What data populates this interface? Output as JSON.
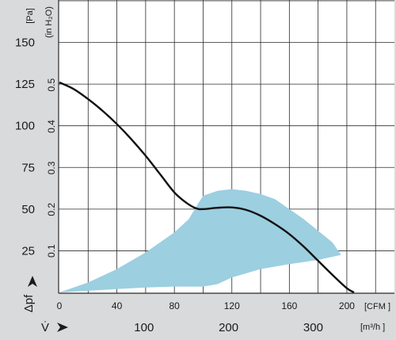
{
  "chart_data": {
    "type": "line",
    "title": "",
    "grid": true,
    "legend": "none",
    "colors": {
      "page": "#d9dadb",
      "plot": "#ffffff",
      "grid": "#2b2b2b",
      "curve": "#111111",
      "region": "#9ccfe0"
    },
    "x_axis": {
      "unit": "[CFM ]",
      "range": [
        0,
        225
      ],
      "ticks": [
        "0",
        "40",
        "80",
        "120",
        "160",
        "200"
      ],
      "tick_values": [
        0,
        40,
        80,
        120,
        160,
        200
      ],
      "grid_step": 20
    },
    "x_axis_metric": {
      "symbol": "V̇",
      "unit": "[m³/h ]",
      "ticks": [
        "100",
        "200",
        "300"
      ],
      "tick_values_cfm": [
        58.86,
        117.72,
        176.57
      ]
    },
    "y_axis": {
      "symbol": "Δpf",
      "unit": "[Pa]",
      "range": [
        0,
        175
      ],
      "ticks": [
        "25",
        "50",
        "75",
        "100",
        "125",
        "150"
      ],
      "tick_values": [
        25,
        50,
        75,
        100,
        125,
        150
      ]
    },
    "y_axis_secondary": {
      "unit": "(in H₂O)",
      "ticks": [
        "0.1",
        "0.2",
        "0.3",
        "0.4",
        "0.5"
      ],
      "tick_values_pa": [
        24.9,
        49.8,
        74.7,
        99.6,
        124.5
      ]
    },
    "series": [
      {
        "x": [
          0,
          10,
          20,
          30,
          40,
          50,
          60,
          70,
          80,
          88,
          95,
          100,
          110,
          120,
          130,
          140,
          150,
          160,
          170,
          180,
          190,
          200,
          205
        ],
        "y": [
          126,
          122,
          116,
          109,
          101,
          92,
          82,
          71,
          60,
          54,
          50.5,
          50,
          50.8,
          51,
          49.5,
          46,
          41,
          35,
          27.5,
          19,
          10.5,
          2.5,
          0
        ]
      }
    ],
    "shaded_region": {
      "upper": {
        "x": [
          0,
          20,
          40,
          60,
          80,
          90,
          97,
          100,
          110,
          120,
          130,
          140,
          150,
          160,
          170,
          180,
          190,
          196
        ],
        "y": [
          0,
          6,
          14,
          24,
          36,
          44,
          54,
          58,
          61,
          62,
          61,
          59,
          56,
          50,
          44,
          37,
          30,
          22.5
        ]
      },
      "lower": {
        "x": [
          196,
          180,
          160,
          140,
          120,
          110,
          100,
          80,
          60,
          40,
          20,
          0
        ],
        "y": [
          22.5,
          19.5,
          17,
          14,
          9,
          5,
          3.5,
          3.5,
          3,
          2,
          1,
          0
        ]
      }
    }
  }
}
